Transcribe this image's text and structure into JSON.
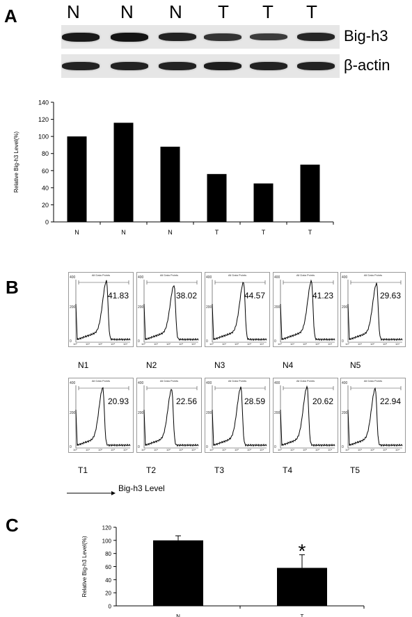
{
  "panel_a": {
    "letter": "A",
    "lanes": [
      "N",
      "N",
      "N",
      "T",
      "T",
      "T"
    ],
    "blots": [
      {
        "label": "Big-h3",
        "intensity": [
          0.95,
          1.0,
          0.85,
          0.65,
          0.55,
          0.8
        ]
      },
      {
        "label": "β-actin",
        "intensity": [
          0.85,
          0.85,
          0.85,
          0.9,
          0.85,
          0.85
        ]
      }
    ]
  },
  "panel_b": {
    "letter": "B",
    "gate_title": "All Data Points",
    "y_ticks": [
      "400",
      "200",
      "0"
    ],
    "x_ticks": [
      "10⁰",
      "10¹",
      "10²",
      "10³",
      "10⁴"
    ],
    "rows": [
      [
        {
          "label": "N1",
          "value": "41.83"
        },
        {
          "label": "N2",
          "value": "38.02"
        },
        {
          "label": "N3",
          "value": "44.57"
        },
        {
          "label": "N4",
          "value": "41.23"
        },
        {
          "label": "N5",
          "value": "29.63"
        }
      ],
      [
        {
          "label": "T1",
          "value": "20.93"
        },
        {
          "label": "T2",
          "value": "22.56"
        },
        {
          "label": "T3",
          "value": "28.59"
        },
        {
          "label": "T4",
          "value": "20.62"
        },
        {
          "label": "T5",
          "value": "22.94"
        }
      ]
    ],
    "axis_caption": "Big-h3  Level"
  },
  "panel_c": {
    "letter": "C"
  },
  "chart_data": [
    {
      "type": "bar",
      "categories": [
        "N",
        "N",
        "N",
        "T",
        "T",
        "T"
      ],
      "values": [
        100,
        116,
        88,
        56,
        45,
        67
      ],
      "ylabel": "Relative Big-h3  Level(%)",
      "xlabel": "",
      "ylim": [
        0,
        140
      ],
      "yticks": [
        0,
        20,
        40,
        60,
        80,
        100,
        120,
        140
      ],
      "grid": false
    },
    {
      "type": "bar",
      "categories": [
        "N",
        "T"
      ],
      "values": [
        100,
        58
      ],
      "errors": [
        7,
        20
      ],
      "annotations": [
        "",
        "*"
      ],
      "ylabel": "Relative Big-h3 Level(%)",
      "xlabel": "",
      "ylim": [
        0,
        120
      ],
      "yticks": [
        0,
        20,
        40,
        60,
        80,
        100,
        120
      ],
      "grid": false
    }
  ]
}
